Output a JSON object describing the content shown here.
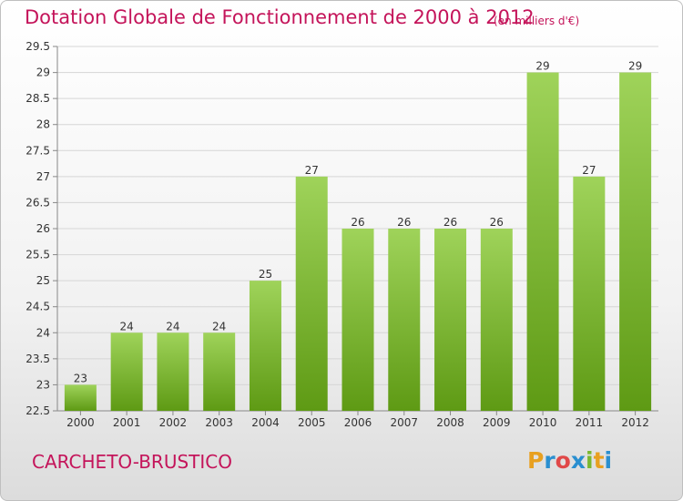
{
  "header": {
    "title": "Dotation Globale de Fonctionnement de 2000 à 2012",
    "subtitle": "(en milliers d'€)"
  },
  "footer": {
    "commune": "CARCHETO-BRUSTICO",
    "logo_letters": [
      "P",
      "r",
      "o",
      "x",
      "i",
      "t",
      "i"
    ],
    "logo_colors": [
      "#e8a020",
      "#2a8fd0",
      "#e04848",
      "#2a8fd0",
      "#7ab830",
      "#e8a020",
      "#2a8fd0"
    ]
  },
  "colors": {
    "bar_light": "#9fd35a",
    "bar_dark": "#5e9a14",
    "title": "#c4145a"
  },
  "chart_data": {
    "type": "bar",
    "categories": [
      "2000",
      "2001",
      "2002",
      "2003",
      "2004",
      "2005",
      "2006",
      "2007",
      "2008",
      "2009",
      "2010",
      "2011",
      "2012"
    ],
    "values": [
      23,
      24,
      24,
      24,
      25,
      27,
      26,
      26,
      26,
      26,
      29,
      27,
      29
    ],
    "data_labels": [
      "23",
      "24",
      "24",
      "24",
      "25",
      "27",
      "26",
      "26",
      "26",
      "26",
      "29",
      "27",
      "29"
    ],
    "yticks": [
      "22.5",
      "23",
      "23.5",
      "24",
      "24.5",
      "25",
      "25.5",
      "26",
      "26.5",
      "27",
      "27.5",
      "28",
      "28.5",
      "29",
      "29.5"
    ],
    "ylim": [
      22.5,
      29.5
    ],
    "grid": true,
    "legend": "none"
  }
}
